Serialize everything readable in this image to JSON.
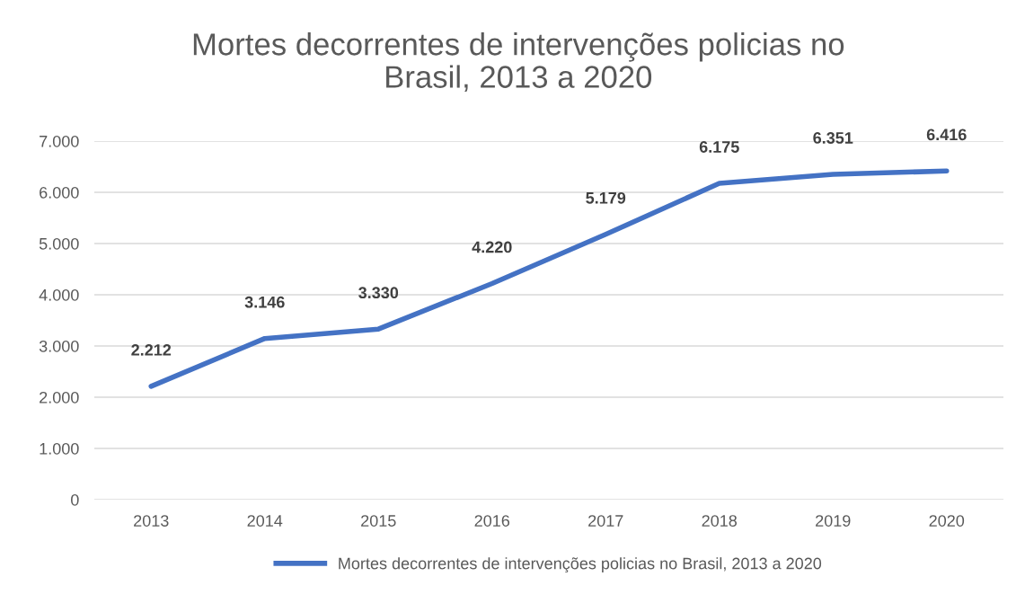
{
  "chart_data": {
    "type": "line",
    "title": "Mortes decorrentes de intervenções policias no\nBrasil, 2013 a 2020",
    "categories": [
      "2013",
      "2014",
      "2015",
      "2016",
      "2017",
      "2018",
      "2019",
      "2020"
    ],
    "series": [
      {
        "name": "Mortes decorrentes de intervenções policias no Brasil, 2013 a 2020",
        "color": "#4472c4",
        "values": [
          2212,
          3146,
          3330,
          4220,
          5179,
          6175,
          6351,
          6416
        ],
        "value_labels": [
          "2.212",
          "3.146",
          "3.330",
          "4.220",
          "5.179",
          "6.175",
          "6.351",
          "6.416"
        ]
      }
    ],
    "ylim": [
      0,
      7000
    ],
    "yticks": [
      0,
      {
        "value": 1000,
        "label": "1.000"
      },
      {
        "value": 2000,
        "label": "2.000"
      },
      {
        "value": 3000,
        "label": "3.000"
      },
      {
        "value": 4000,
        "label": "4.000"
      },
      {
        "value": 5000,
        "label": "5.000"
      },
      {
        "value": 6000,
        "label": "6.000"
      },
      {
        "value": 7000,
        "label": "7.000"
      }
    ],
    "grid": "y",
    "legend": "bottom",
    "marker": "none",
    "line_style": "solid"
  }
}
